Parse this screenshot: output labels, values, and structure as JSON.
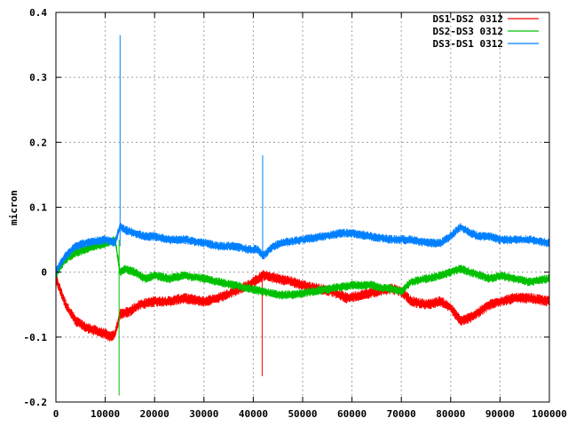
{
  "chart_data": {
    "type": "line",
    "title": "",
    "xlabel": "",
    "ylabel": "micron",
    "xlim": [
      0,
      100000
    ],
    "ylim": [
      -0.2,
      0.4
    ],
    "grid": true,
    "legend_position": "top-right",
    "x_ticks": [
      {
        "value": 0,
        "label": "0"
      },
      {
        "value": 10000,
        "label": "10000"
      },
      {
        "value": 20000,
        "label": "20000"
      },
      {
        "value": 30000,
        "label": "30000"
      },
      {
        "value": 40000,
        "label": "40000"
      },
      {
        "value": 50000,
        "label": "50000"
      },
      {
        "value": 60000,
        "label": "60000"
      },
      {
        "value": 70000,
        "label": "70000"
      },
      {
        "value": 80000,
        "label": "80000"
      },
      {
        "value": 90000,
        "label": "90000"
      },
      {
        "value": 100000,
        "label": "100000"
      }
    ],
    "y_ticks": [
      {
        "value": -0.2,
        "label": "-0.2"
      },
      {
        "value": -0.1,
        "label": "-0.1"
      },
      {
        "value": 0,
        "label": "0"
      },
      {
        "value": 0.1,
        "label": "0.1"
      },
      {
        "value": 0.2,
        "label": "0.2"
      },
      {
        "value": 0.3,
        "label": "0.3"
      },
      {
        "value": 0.4,
        "label": "0.4"
      }
    ],
    "series": [
      {
        "name": "DS1-DS2 0312",
        "color": "#ff0000",
        "noise": 0.006,
        "x": [
          0,
          2000,
          4000,
          6000,
          8000,
          10000,
          11000,
          12000,
          13000,
          15000,
          17000,
          20000,
          23000,
          26000,
          30000,
          33000,
          36000,
          39000,
          42000,
          45000,
          48000,
          50000,
          53000,
          56000,
          59000,
          62000,
          65000,
          68000,
          70000,
          72000,
          75000,
          78000,
          80000,
          82000,
          84000,
          86000,
          88000,
          90000,
          93000,
          96000,
          100000
        ],
        "y": [
          -0.01,
          -0.05,
          -0.075,
          -0.085,
          -0.09,
          -0.095,
          -0.1,
          -0.095,
          -0.065,
          -0.06,
          -0.05,
          -0.045,
          -0.045,
          -0.04,
          -0.045,
          -0.04,
          -0.03,
          -0.02,
          -0.005,
          -0.01,
          -0.015,
          -0.02,
          -0.025,
          -0.03,
          -0.04,
          -0.035,
          -0.03,
          -0.025,
          -0.03,
          -0.045,
          -0.05,
          -0.045,
          -0.055,
          -0.075,
          -0.07,
          -0.06,
          -0.05,
          -0.045,
          -0.04,
          -0.04,
          -0.045
        ],
        "spike": {
          "x": 41800,
          "low": -0.16,
          "high": 0.0
        }
      },
      {
        "name": "DS2-DS3 0312",
        "color": "#00c000",
        "noise": 0.005,
        "x": [
          0,
          1000,
          2000,
          4000,
          6000,
          8000,
          10000,
          12000,
          13000,
          14000,
          16000,
          18000,
          20000,
          23000,
          26000,
          30000,
          33000,
          36000,
          39000,
          42000,
          45000,
          48000,
          52000,
          56000,
          60000,
          64000,
          66000,
          68000,
          70000,
          72000,
          75000,
          78000,
          80000,
          82000,
          84000,
          86000,
          88000,
          90000,
          93000,
          96000,
          100000
        ],
        "y": [
          -0.005,
          0.01,
          0.02,
          0.03,
          0.035,
          0.04,
          0.045,
          0.05,
          0.0,
          0.005,
          0.0,
          -0.01,
          -0.005,
          -0.01,
          -0.005,
          -0.01,
          -0.015,
          -0.02,
          -0.025,
          -0.03,
          -0.035,
          -0.035,
          -0.03,
          -0.025,
          -0.02,
          -0.02,
          -0.025,
          -0.025,
          -0.03,
          -0.015,
          -0.01,
          -0.005,
          0.0,
          0.005,
          0.0,
          -0.005,
          -0.01,
          -0.005,
          -0.01,
          -0.015,
          -0.01
        ],
        "spike": {
          "x": 12800,
          "low": -0.19,
          "high": 0.05
        }
      },
      {
        "name": "DS3-DS1 0312",
        "color": "#0080ff",
        "noise": 0.005,
        "x": [
          0,
          1000,
          2000,
          4000,
          6000,
          8000,
          10000,
          12000,
          13000,
          14000,
          16000,
          18000,
          20000,
          23000,
          26000,
          30000,
          33000,
          36000,
          39000,
          41000,
          42000,
          44000,
          46000,
          50000,
          54000,
          58000,
          60000,
          64000,
          68000,
          72000,
          75000,
          78000,
          80000,
          82000,
          84000,
          86000,
          88000,
          90000,
          93000,
          96000,
          100000
        ],
        "y": [
          0.0,
          0.015,
          0.025,
          0.04,
          0.045,
          0.048,
          0.05,
          0.045,
          0.07,
          0.065,
          0.06,
          0.055,
          0.055,
          0.05,
          0.05,
          0.045,
          0.04,
          0.04,
          0.035,
          0.035,
          0.025,
          0.04,
          0.045,
          0.05,
          0.055,
          0.06,
          0.06,
          0.055,
          0.05,
          0.05,
          0.045,
          0.045,
          0.055,
          0.07,
          0.06,
          0.055,
          0.055,
          0.05,
          0.05,
          0.05,
          0.045
        ],
        "spike": {
          "x": 13000,
          "low": 0.04,
          "high": 0.365
        },
        "spike2": {
          "x": 41900,
          "low": 0.02,
          "high": 0.18
        }
      }
    ]
  }
}
